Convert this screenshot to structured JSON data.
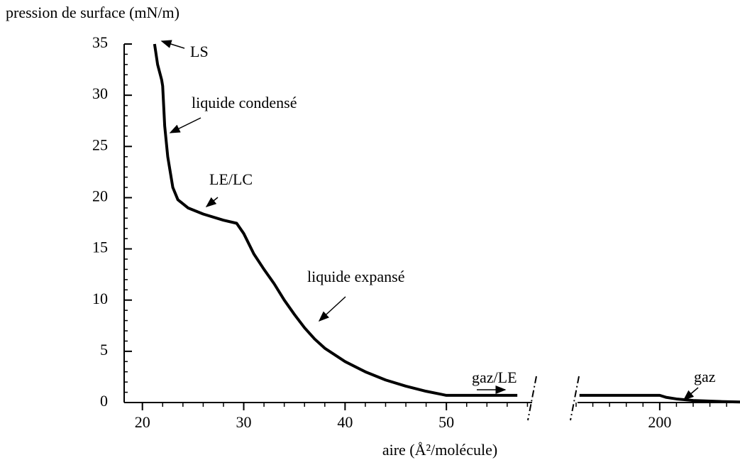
{
  "chart_data": {
    "type": "line",
    "title": "pression de surface (mN/m)",
    "xlabel": "aire (Å²/molécule)",
    "color": "#000000",
    "ylim": [
      0,
      35
    ],
    "yticks": [
      0,
      5,
      10,
      15,
      20,
      25,
      30,
      35
    ],
    "yminor_step": 1,
    "segments": [
      {
        "xlim": [
          18.2,
          58.6
        ],
        "xticks": [
          20,
          30,
          40,
          50
        ],
        "xminor_step": 2,
        "x": [
          21.2,
          21.5,
          21.9,
          22.0,
          22.2,
          22.5,
          23,
          23.5,
          24.5,
          26,
          28,
          29.3,
          30,
          31,
          32,
          33,
          34,
          35,
          36,
          37,
          38,
          40,
          42,
          44,
          46,
          48,
          49.5,
          50,
          57
        ],
        "values": [
          35,
          33,
          31.5,
          30.9,
          27,
          24,
          21,
          19.8,
          19,
          18.4,
          17.8,
          17.5,
          16.5,
          14.5,
          13,
          11.6,
          10,
          8.6,
          7.3,
          6.2,
          5.3,
          4,
          3,
          2.2,
          1.6,
          1.1,
          0.8,
          0.7,
          0.7
        ]
      },
      {
        "xlim": [
          175,
          224
        ],
        "xticks": [
          200
        ],
        "xminor_step": 5,
        "x": [
          176,
          200,
          202,
          205,
          210,
          218,
          224
        ],
        "values": [
          0.7,
          0.7,
          0.5,
          0.35,
          0.2,
          0.1,
          0.05
        ]
      }
    ],
    "annotations": [
      "LS",
      "liquide condensé",
      "LE/LC",
      "liquide expansé",
      "gaz/LE",
      "gaz"
    ]
  }
}
